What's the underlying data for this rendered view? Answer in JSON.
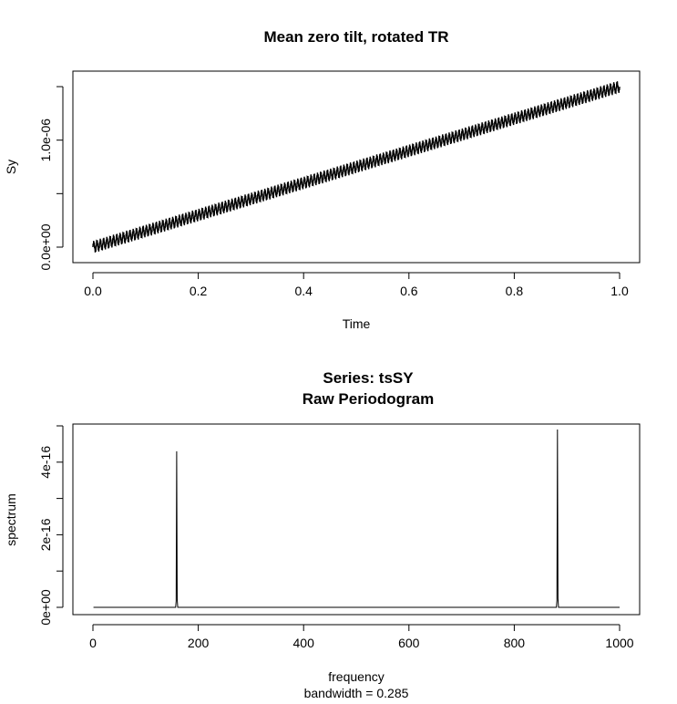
{
  "chart_data": [
    {
      "type": "line",
      "title": "Mean zero tilt, rotated TR",
      "xlabel": "Time",
      "ylabel": "Sy",
      "xlim": [
        0.0,
        1.0
      ],
      "ylim": [
        -1e-07,
        1.6e-06
      ],
      "xticks": [
        0.0,
        0.2,
        0.4,
        0.6,
        0.8,
        1.0
      ],
      "xtick_labels": [
        "0.0",
        "0.2",
        "0.4",
        "0.6",
        "0.8",
        "1.0"
      ],
      "yticks": [
        0,
        5e-07,
        1e-06,
        1.5e-06
      ],
      "ytick_labels": [
        "0.0e+00",
        "",
        "1.0e-06",
        ""
      ],
      "series": [
        {
          "trend_start": 0,
          "trend_end": 1.5e-06,
          "oscillation_amplitude": 4e-08,
          "oscillation_cycles": 160,
          "x_start": 0.0,
          "x_end": 1.0
        }
      ]
    },
    {
      "type": "line",
      "title": "Series: tsSY",
      "subtitle": "Raw Periodogram",
      "xlabel": "frequency",
      "note": "bandwidth = 0.285",
      "ylabel": "spectrum",
      "xlim": [
        0,
        1000
      ],
      "ylim": [
        0,
        5e-16
      ],
      "xticks": [
        0,
        200,
        400,
        600,
        800,
        1000
      ],
      "xtick_labels": [
        "0",
        "200",
        "400",
        "600",
        "800",
        "1000"
      ],
      "yticks": [
        0,
        1e-16,
        2e-16,
        3e-16,
        4e-16,
        5e-16
      ],
      "ytick_labels": [
        "0e+00",
        "",
        "2e-16",
        "",
        "4e-16",
        ""
      ],
      "peaks": [
        {
          "frequency": 159,
          "spectrum": 4.3e-16
        },
        {
          "frequency": 882,
          "spectrum": 4.9e-16
        }
      ],
      "x_start": 1,
      "x_end": 1000
    }
  ]
}
